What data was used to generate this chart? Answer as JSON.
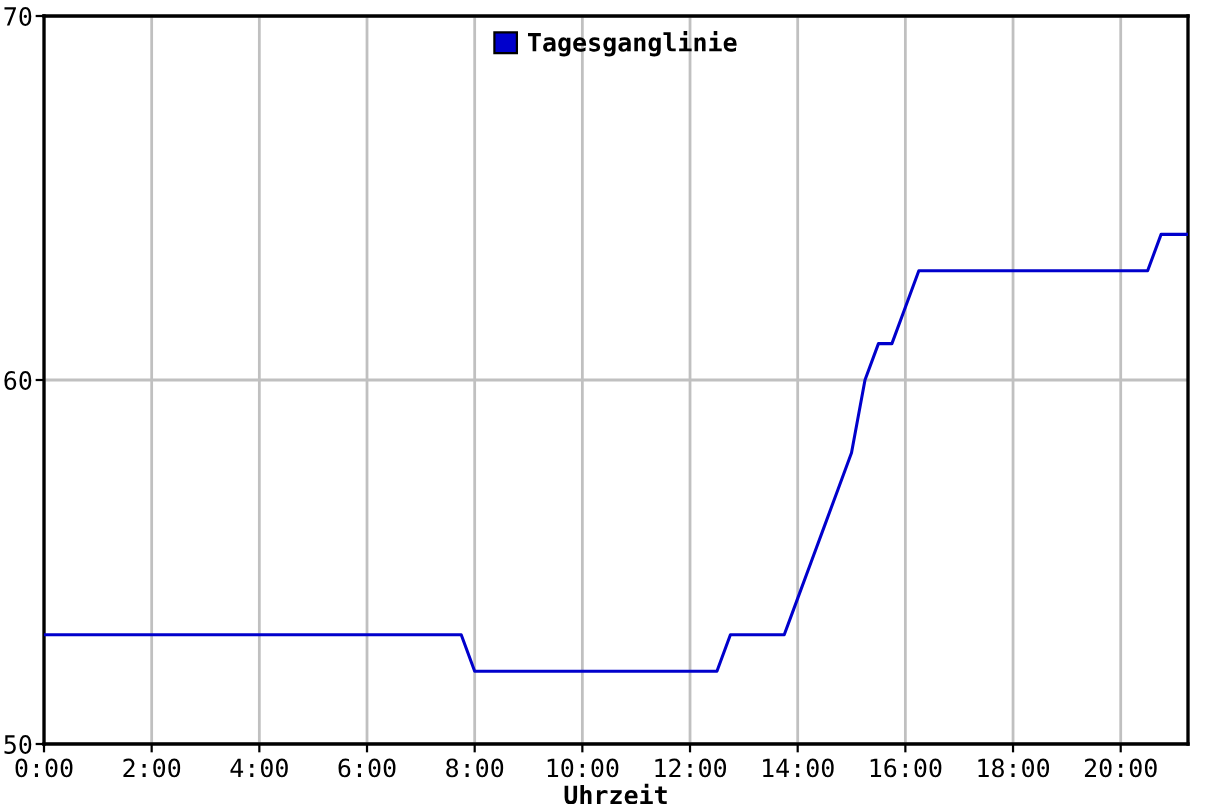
{
  "chart_data": {
    "type": "line",
    "xlabel": "Uhrzeit",
    "series": [
      {
        "name": "Tagesganglinie",
        "color": "#0000cc",
        "x": [
          0,
          7.75,
          8,
          12.5,
          12.75,
          13.75,
          14,
          14.25,
          14.5,
          14.75,
          15,
          15.25,
          15.5,
          15.75,
          16,
          16.25,
          20.5,
          20.75,
          21.25
        ],
        "values": [
          53,
          53,
          52,
          52,
          53,
          53,
          54,
          55,
          56,
          57,
          58,
          60,
          61,
          61,
          62,
          63,
          63,
          64,
          64
        ]
      }
    ],
    "xlim": [
      0,
      21.25
    ],
    "xticks": [
      {
        "value": 0,
        "label": "0:00"
      },
      {
        "value": 2,
        "label": "2:00"
      },
      {
        "value": 4,
        "label": "4:00"
      },
      {
        "value": 6,
        "label": "6:00"
      },
      {
        "value": 8,
        "label": "8:00"
      },
      {
        "value": 10,
        "label": "10:00"
      },
      {
        "value": 12,
        "label": "12:00"
      },
      {
        "value": 14,
        "label": "14:00"
      },
      {
        "value": 16,
        "label": "16:00"
      },
      {
        "value": 18,
        "label": "18:00"
      },
      {
        "value": 20,
        "label": "20:00"
      }
    ],
    "ylim": [
      50,
      70
    ],
    "yticks": [
      50,
      60,
      70
    ],
    "grid": true,
    "legend": "top",
    "marker": "none",
    "line_style": "solid"
  }
}
